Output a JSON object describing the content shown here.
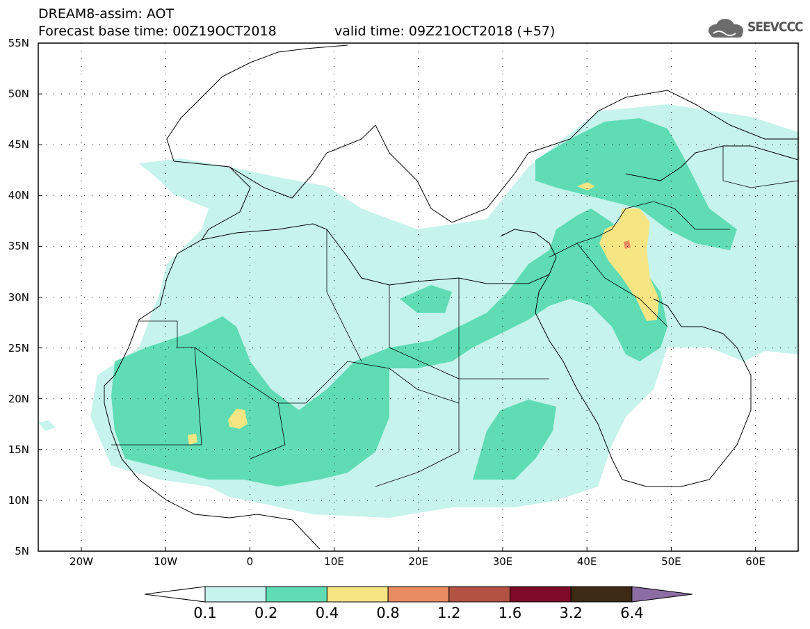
{
  "header": {
    "title": "DREAM8-assim: AOT",
    "base_time": "Forecast base time: 00Z19OCT2018",
    "valid_time": "valid time: 09Z21OCT2018 (+57)",
    "logo_text": "SEEVCCC"
  },
  "map": {
    "lat_labels": [
      "55N",
      "50N",
      "45N",
      "40N",
      "35N",
      "30N",
      "25N",
      "20N",
      "15N",
      "10N",
      "5N"
    ],
    "lon_labels": [
      "20W",
      "10W",
      "0",
      "10E",
      "20E",
      "30E",
      "40E",
      "50E",
      "60E"
    ]
  },
  "legend": {
    "labels": [
      "0.1",
      "0.2",
      "0.4",
      "0.8",
      "1.2",
      "1.6",
      "3.2",
      "6.4"
    ],
    "colors": [
      "#c6f3ec",
      "#5fdcb4",
      "#f5e683",
      "#e98b62",
      "#b15242",
      "#7d0a27",
      "#3d2a14",
      "#8b6da3"
    ]
  }
}
